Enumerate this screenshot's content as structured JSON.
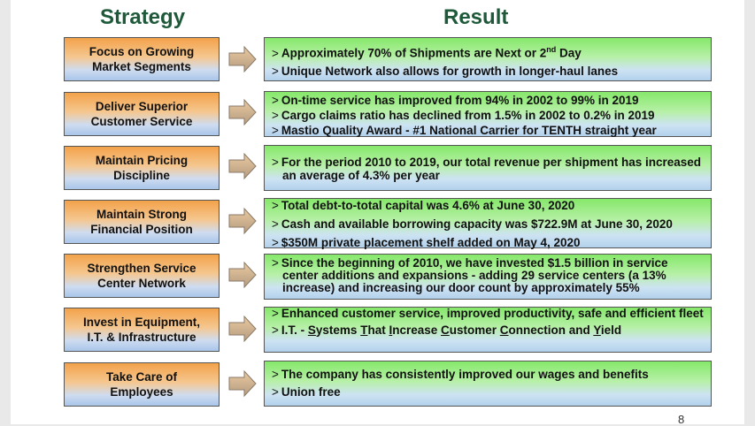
{
  "headers": {
    "strategy": "Strategy",
    "result": "Result"
  },
  "rows": [
    {
      "strategy": [
        "Focus on Growing",
        "Market Segments"
      ],
      "results": [
        {
          "pre": "Approximately 70% of Shipments are Next or 2",
          "sup": "nd",
          "post": " Day"
        },
        {
          "pre": "Unique Network also allows for growth in longer-haul lanes"
        }
      ]
    },
    {
      "strategy": [
        "Deliver Superior",
        "Customer Service"
      ],
      "results": [
        {
          "pre": "On-time service has improved from 94% in 2002 to 99% in 2019"
        },
        {
          "pre": "Cargo claims ratio has declined from 1.5% in 2002 to 0.2% in 2019"
        },
        {
          "pre": "Mastio Quality Award - #1 National Carrier for TENTH straight year"
        }
      ]
    },
    {
      "strategy": [
        "Maintain Pricing",
        "Discipline"
      ],
      "results": [
        {
          "pre": "For the period 2010 to 2019, our total revenue per shipment has increased an average of 4.3% per year"
        }
      ]
    },
    {
      "strategy": [
        "Maintain Strong",
        "Financial Position"
      ],
      "results": [
        {
          "pre": "Total debt-to-total capital was 4.6% at June 30, 2020"
        },
        {
          "pre": "Cash and available borrowing capacity was $722.9M at June 30, 2020"
        },
        {
          "pre": "$350M private placement shelf added on May 4, 2020"
        }
      ]
    },
    {
      "strategy": [
        "Strengthen Service",
        "Center Network"
      ],
      "results": [
        {
          "pre": "Since the beginning of 2010, we have invested $1.5 billion in service center additions and expansions - adding 29 service centers (a 13% increase) and increasing our door count by approximately 55%"
        }
      ]
    },
    {
      "strategy": [
        "Invest in Equipment,",
        "I.T. & Infrastructure"
      ],
      "results": [
        {
          "pre": "Enhanced customer service, improved productivity, safe and efficient fleet"
        },
        {
          "itsyc": [
            "I.T. - ",
            "S",
            "ystems ",
            "T",
            "hat ",
            "I",
            "ncrease ",
            "C",
            "ustomer ",
            "C",
            "onnection and ",
            "Y",
            "ield"
          ]
        }
      ]
    },
    {
      "strategy": [
        "Take Care of",
        "Employees"
      ],
      "results": [
        {
          "pre": "The company has consistently improved our wages and benefits"
        },
        {
          "pre": "Union free"
        }
      ]
    }
  ],
  "page_number": "8"
}
